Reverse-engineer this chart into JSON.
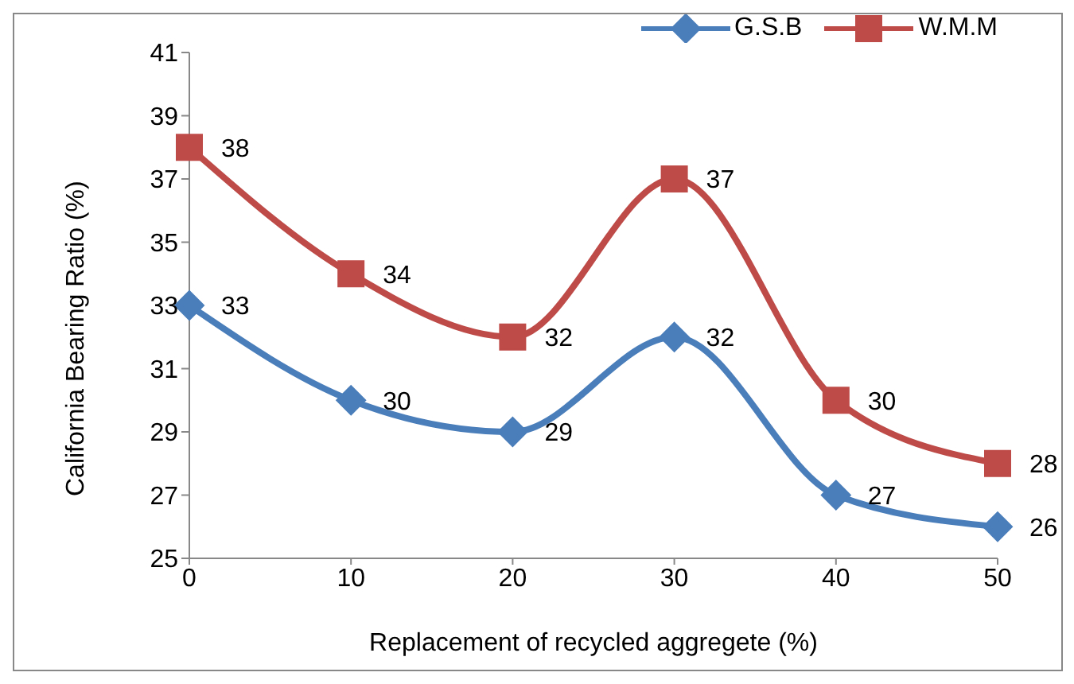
{
  "chart_data": {
    "type": "line",
    "xlabel": "Replacement of recycled aggregete (%)",
    "ylabel": "California Bearing Ratio (%)",
    "x": [
      0,
      10,
      20,
      30,
      40,
      50
    ],
    "series": [
      {
        "name": "G.S.B",
        "color": "#4a7ebb",
        "values": [
          33,
          30,
          29,
          32,
          27,
          26
        ],
        "marker": "diamond"
      },
      {
        "name": "W.M.M",
        "color": "#be4b48",
        "values": [
          38,
          34,
          32,
          37,
          30,
          28
        ],
        "marker": "square"
      }
    ],
    "xlim": [
      0,
      50
    ],
    "xticks": [
      0,
      10,
      20,
      30,
      40,
      50
    ],
    "ylim": [
      25,
      41
    ],
    "yticks": [
      25,
      27,
      29,
      31,
      33,
      35,
      37,
      39,
      41
    ],
    "grid": false,
    "legend": "top right",
    "data_labels": true,
    "line_style": "solid"
  }
}
